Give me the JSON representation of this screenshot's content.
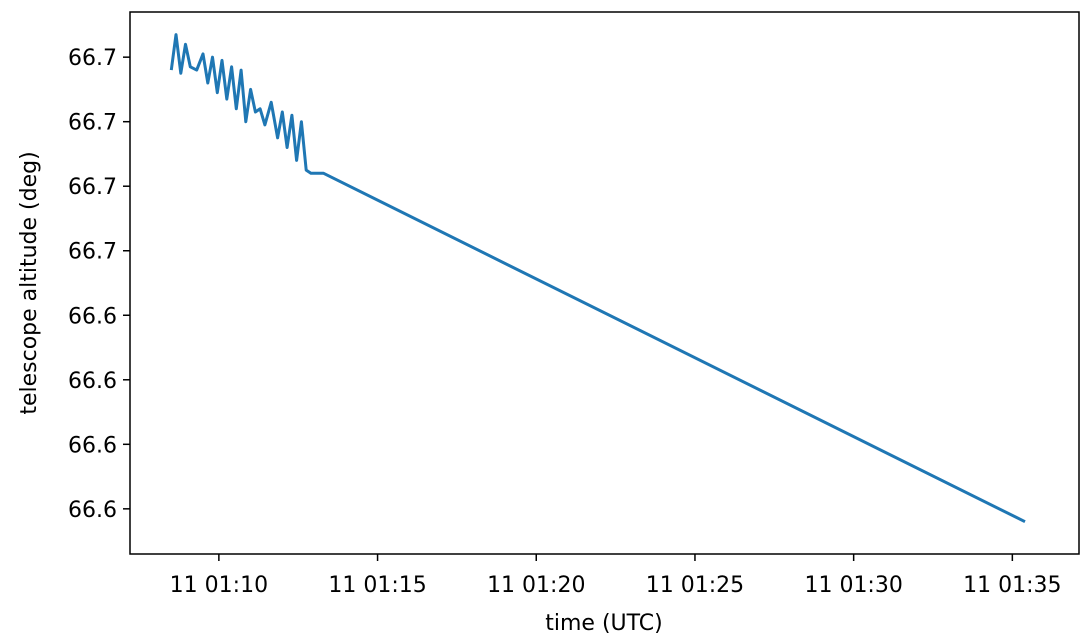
{
  "chart_data": {
    "type": "line",
    "title": "",
    "xlabel": "time (UTC)",
    "ylabel": "telescope altitude (deg)",
    "grid": false,
    "legend": "none",
    "x_axis": {
      "ticks": [
        "11 01:10",
        "11 01:15",
        "11 01:20",
        "11 01:25",
        "11 01:30",
        "11 01:35"
      ],
      "tick_minutes": [
        10,
        15,
        20,
        25,
        30,
        35
      ],
      "xlim_minutes": [
        7.2,
        37.1
      ]
    },
    "y_axis": {
      "tick_labels": [
        "66.7",
        "66.7",
        "66.7",
        "66.7",
        "66.6",
        "66.6",
        "66.6",
        "66.6"
      ],
      "tick_values": [
        7,
        6,
        5,
        4,
        3,
        2,
        1,
        0
      ],
      "ylim": [
        -0.7,
        7.7
      ]
    },
    "series": [
      {
        "color": "#1f77b4",
        "x_minutes": [
          8.5,
          8.65,
          8.8,
          8.95,
          9.1,
          9.3,
          9.5,
          9.65,
          9.8,
          9.95,
          10.1,
          10.25,
          10.4,
          10.55,
          10.7,
          10.85,
          11.0,
          11.15,
          11.3,
          11.45,
          11.65,
          11.85,
          12.0,
          12.15,
          12.3,
          12.45,
          12.6,
          12.75,
          12.9,
          13.05,
          13.2,
          13.3,
          35.4
        ],
        "y": [
          6.8,
          7.35,
          6.75,
          7.2,
          6.85,
          6.8,
          7.05,
          6.6,
          7.0,
          6.45,
          6.95,
          6.35,
          6.85,
          6.2,
          6.8,
          6.0,
          6.5,
          6.15,
          6.2,
          5.95,
          6.3,
          5.75,
          6.15,
          5.6,
          6.1,
          5.4,
          6.0,
          5.25,
          5.2,
          5.2,
          5.2,
          5.2,
          -0.2
        ]
      }
    ]
  }
}
